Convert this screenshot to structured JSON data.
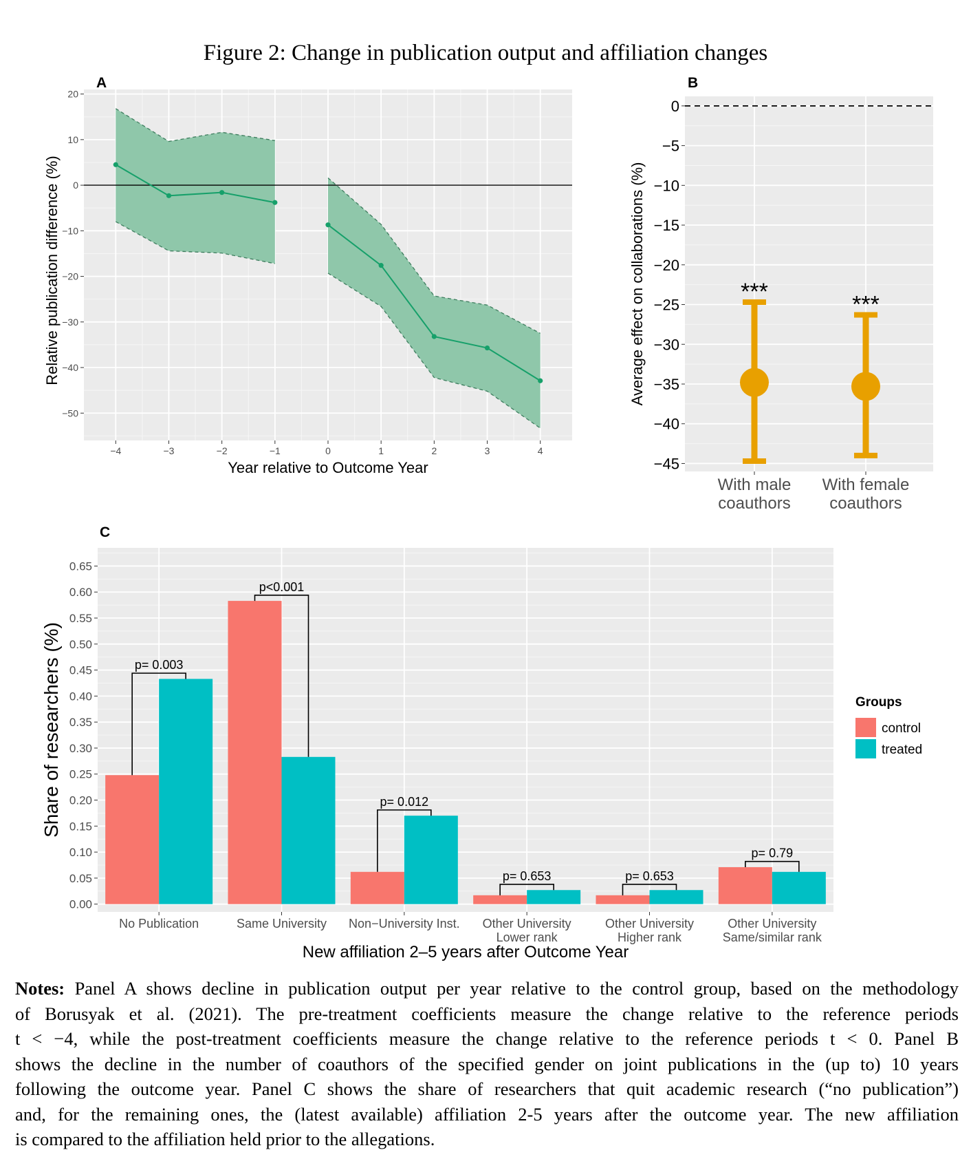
{
  "figure_title": "Figure 2: Change in publication output and affiliation changes",
  "colors": {
    "ribbon": "#8fc7aa",
    "line": "#16a06a",
    "panel_bg": "#ebebeb",
    "orange": "#e8a000",
    "control": "#f8766d",
    "treated": "#00bfc4"
  },
  "chart_data": [
    {
      "panel": "A",
      "type": "line",
      "xlabel": "Year relative to Outcome Year",
      "ylabel": "Relative publication difference (%)",
      "x_ticks": [
        "−4",
        "−3",
        "−2",
        "−1",
        "0",
        "1",
        "2",
        "3",
        "4"
      ],
      "y_ticks": [
        "20",
        "10",
        "0",
        "−10",
        "−20",
        "−30",
        "−40",
        "−50"
      ],
      "xlim": [
        -4.6,
        4.6
      ],
      "ylim": [
        -56,
        21
      ],
      "series": [
        {
          "segment": "pre",
          "x": [
            -4,
            -3,
            -2,
            -1
          ],
          "y": [
            4.5,
            -2.3,
            -1.6,
            -3.8
          ],
          "lower": [
            -8.0,
            -14.4,
            -14.9,
            -17.2
          ],
          "upper": [
            16.8,
            9.6,
            11.6,
            9.8
          ]
        },
        {
          "segment": "post",
          "x": [
            0,
            1,
            2,
            3,
            4
          ],
          "y": [
            -8.7,
            -17.6,
            -33.2,
            -35.7,
            -42.9
          ],
          "lower": [
            -19.3,
            -26.6,
            -42.2,
            -45.2,
            -53.3
          ],
          "upper": [
            1.6,
            -8.6,
            -24.3,
            -26.3,
            -32.5
          ]
        }
      ]
    },
    {
      "panel": "B",
      "type": "scatter",
      "ylabel": "Average effect on collaborations (%)",
      "categories": [
        "With male\ncoauthors",
        "With female\ncoauthors"
      ],
      "y_ticks": [
        "0",
        "−5",
        "−10",
        "−15",
        "−20",
        "−25",
        "−30",
        "−35",
        "−40",
        "−45"
      ],
      "ylim": [
        -46,
        1.2
      ],
      "reference_line": 0,
      "values": [
        -34.8,
        -35.3
      ],
      "lower": [
        -44.7,
        -44.0
      ],
      "upper": [
        -24.7,
        -26.3
      ],
      "annotations": [
        "***",
        "***"
      ]
    },
    {
      "panel": "C",
      "type": "bar",
      "xlabel": "New affiliation 2–5 years after Outcome Year",
      "ylabel": "Share of researchers (%)",
      "categories": [
        "No Publication",
        "Same University",
        "Non−University Inst.",
        "Other University\nLower rank",
        "Other University\nHigher rank",
        "Other University\nSame/similar rank"
      ],
      "y_ticks": [
        "0.65",
        "0.60",
        "0.55",
        "0.50",
        "0.45",
        "0.40",
        "0.35",
        "0.30",
        "0.25",
        "0.20",
        "0.15",
        "0.10",
        "0.05",
        "0.00"
      ],
      "ylim": [
        -0.015,
        0.685
      ],
      "legend_title": "Groups",
      "series": [
        {
          "name": "control",
          "values": [
            0.248,
            0.583,
            0.062,
            0.017,
            0.017,
            0.071
          ]
        },
        {
          "name": "treated",
          "values": [
            0.433,
            0.283,
            0.17,
            0.027,
            0.027,
            0.062
          ]
        }
      ],
      "pvalues": [
        "p= 0.003",
        "p<0.001",
        "p= 0.012",
        "p= 0.653",
        "p= 0.653",
        "p= 0.79"
      ]
    }
  ],
  "notes": {
    "label": "Notes:",
    "lines": [
      " Panel A shows decline in publication output per year relative to the control group, based on the methodology",
      "of Borusyak et al. (2021). The pre-treatment coefficients measure the change relative to the reference periods",
      "t < −4, while the post-treatment coefficients measure the change relative to the reference periods t < 0. Panel B",
      "shows the decline in the number of coauthors of the specified gender on joint publications in the (up to) 10 years",
      "following the outcome year. Panel C shows the share of researchers that quit academic research (“no publication”)",
      "and, for the remaining ones, the (latest available) affiliation 2-5 years after the outcome year. The new affiliation",
      "is compared to the affiliation held prior to the allegations."
    ]
  }
}
